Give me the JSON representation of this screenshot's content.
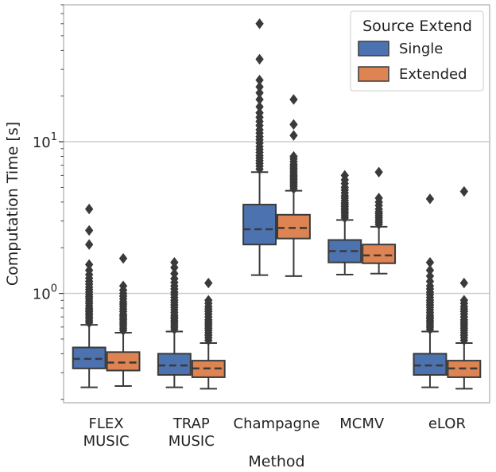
{
  "chart_data": {
    "type": "box",
    "title": "",
    "xlabel": "Method",
    "ylabel": "Computation Time [s]",
    "yscale": "log",
    "ylim": [
      0.19,
      80
    ],
    "yticks": [
      {
        "value": 1,
        "base": "10",
        "exp": "0"
      },
      {
        "value": 10,
        "base": "10",
        "exp": "1"
      }
    ],
    "grid": "horizontal major",
    "categories": [
      [
        "FLEX",
        "MUSIC"
      ],
      [
        "TRAP",
        "MUSIC"
      ],
      [
        "Champagne"
      ],
      [
        "MCMV"
      ],
      [
        "eLOR"
      ]
    ],
    "legend": {
      "title": "Source Extend",
      "position": "top-right"
    },
    "series": [
      {
        "name": "Single",
        "color": "#4c72b0",
        "boxes": [
          {
            "q1": 0.32,
            "median": 0.37,
            "q3": 0.44,
            "wlow": 0.24,
            "whigh": 0.62,
            "fliers": [
              0.64,
              0.66,
              0.68,
              0.7,
              0.72,
              0.74,
              0.76,
              0.78,
              0.8,
              0.83,
              0.86,
              0.89,
              0.92,
              0.95,
              0.98,
              1.02,
              1.06,
              1.1,
              1.15,
              1.2,
              1.26,
              1.33,
              1.42,
              1.55,
              2.1,
              2.6,
              3.6
            ]
          },
          {
            "q1": 0.29,
            "median": 0.335,
            "q3": 0.4,
            "wlow": 0.24,
            "whigh": 0.56,
            "fliers": [
              0.58,
              0.6,
              0.62,
              0.64,
              0.66,
              0.68,
              0.7,
              0.72,
              0.75,
              0.78,
              0.81,
              0.84,
              0.87,
              0.9,
              0.94,
              0.98,
              1.02,
              1.07,
              1.12,
              1.18,
              1.25,
              1.35,
              1.48,
              1.6
            ]
          },
          {
            "q1": 2.1,
            "median": 2.65,
            "q3": 3.85,
            "wlow": 1.32,
            "whigh": 6.3,
            "fliers": [
              6.6,
              6.9,
              7.2,
              7.5,
              7.8,
              8.1,
              8.5,
              8.9,
              9.3,
              9.8,
              10.3,
              10.8,
              11.4,
              12.0,
              12.8,
              13.6,
              14.5,
              15.5,
              17.0,
              19.0,
              21.0,
              23.0,
              25.5,
              35.0,
              60.0
            ]
          },
          {
            "q1": 1.6,
            "median": 1.9,
            "q3": 2.25,
            "wlow": 1.33,
            "whigh": 3.05,
            "fliers": [
              3.15,
              3.25,
              3.35,
              3.45,
              3.55,
              3.65,
              3.75,
              3.85,
              3.95,
              4.1,
              4.25,
              4.4,
              4.6,
              4.8,
              5.0,
              5.3,
              5.6,
              6.0
            ]
          },
          {
            "q1": 0.29,
            "median": 0.335,
            "q3": 0.4,
            "wlow": 0.24,
            "whigh": 0.56,
            "fliers": [
              0.58,
              0.6,
              0.62,
              0.64,
              0.66,
              0.68,
              0.7,
              0.72,
              0.75,
              0.78,
              0.81,
              0.84,
              0.87,
              0.9,
              0.94,
              0.98,
              1.02,
              1.07,
              1.12,
              1.2,
              1.3,
              1.42,
              1.6,
              4.2
            ]
          }
        ]
      },
      {
        "name": "Extended",
        "color": "#dd8452",
        "boxes": [
          {
            "q1": 0.31,
            "median": 0.35,
            "q3": 0.41,
            "wlow": 0.245,
            "whigh": 0.55,
            "fliers": [
              0.57,
              0.59,
              0.61,
              0.63,
              0.65,
              0.67,
              0.69,
              0.71,
              0.73,
              0.76,
              0.79,
              0.82,
              0.85,
              0.88,
              0.92,
              0.96,
              1.0,
              1.05,
              1.12,
              1.7
            ]
          },
          {
            "q1": 0.28,
            "median": 0.32,
            "q3": 0.36,
            "wlow": 0.235,
            "whigh": 0.47,
            "fliers": [
              0.49,
              0.51,
              0.53,
              0.55,
              0.57,
              0.59,
              0.61,
              0.63,
              0.65,
              0.67,
              0.7,
              0.73,
              0.76,
              0.79,
              0.82,
              0.86,
              0.9,
              1.17
            ]
          },
          {
            "q1": 2.3,
            "median": 2.7,
            "q3": 3.3,
            "wlow": 1.3,
            "whigh": 4.75,
            "fliers": [
              4.9,
              5.05,
              5.2,
              5.35,
              5.5,
              5.65,
              5.8,
              5.95,
              6.1,
              6.3,
              6.5,
              6.7,
              6.9,
              7.1,
              7.4,
              7.7,
              8.0,
              11.0,
              13.0,
              19.0
            ]
          },
          {
            "q1": 1.58,
            "median": 1.78,
            "q3": 2.1,
            "wlow": 1.35,
            "whigh": 2.75,
            "fliers": [
              2.85,
              2.95,
              3.05,
              3.15,
              3.25,
              3.35,
              3.45,
              3.6,
              3.8,
              4.0,
              4.25,
              6.3
            ]
          },
          {
            "q1": 0.28,
            "median": 0.32,
            "q3": 0.36,
            "wlow": 0.235,
            "whigh": 0.47,
            "fliers": [
              0.49,
              0.51,
              0.53,
              0.55,
              0.57,
              0.59,
              0.61,
              0.63,
              0.65,
              0.67,
              0.7,
              0.73,
              0.76,
              0.79,
              0.82,
              0.86,
              0.9,
              1.17,
              4.7
            ]
          }
        ]
      }
    ]
  }
}
